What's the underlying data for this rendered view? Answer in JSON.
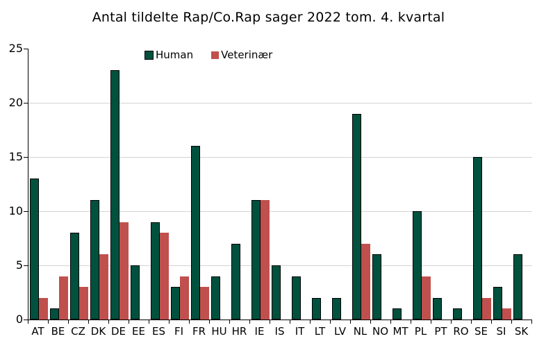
{
  "title": "Antal tildelte Rap/Co.Rap sager 2022 tom. 4. kvartal",
  "chart_data": {
    "type": "bar",
    "title": "Antal tildelte Rap/Co.Rap sager 2022 tom. 4. kvartal",
    "categories": [
      "AT",
      "BE",
      "CZ",
      "DK",
      "DE",
      "EE",
      "ES",
      "FI",
      "FR",
      "HU",
      "HR",
      "IE",
      "IS",
      "IT",
      "LT",
      "LV",
      "NL",
      "NO",
      "MT",
      "PL",
      "PT",
      "RO",
      "SE",
      "SI",
      "SK"
    ],
    "series": [
      {
        "key": "human",
        "name": "Human",
        "color": "#00513E",
        "border_color": "#000000",
        "values": [
          13,
          1,
          8,
          11,
          23,
          5,
          9,
          3,
          16,
          4,
          7,
          11,
          5,
          4,
          2,
          2,
          19,
          6,
          1,
          10,
          2,
          1,
          15,
          3,
          6
        ]
      },
      {
        "key": "veterinaer",
        "name": "Veterinær",
        "color": "#C0504D",
        "border_color": null,
        "values": [
          2,
          4,
          3,
          6,
          9,
          0,
          8,
          4,
          3,
          0,
          0,
          11,
          0,
          0,
          0,
          0,
          7,
          0,
          0,
          4,
          0,
          0,
          2,
          1,
          0
        ]
      }
    ],
    "xlabel": "",
    "ylabel": "",
    "ylim": [
      0,
      25
    ],
    "ytick_step": 5,
    "yticks": [
      0,
      5,
      10,
      15,
      20,
      25
    ],
    "grid": true,
    "gridline_color": "#D3D3D3",
    "axis_color": "#000000",
    "text_color": "#000000",
    "background_color": "#FFFFFF",
    "legend_position": "top-center"
  }
}
